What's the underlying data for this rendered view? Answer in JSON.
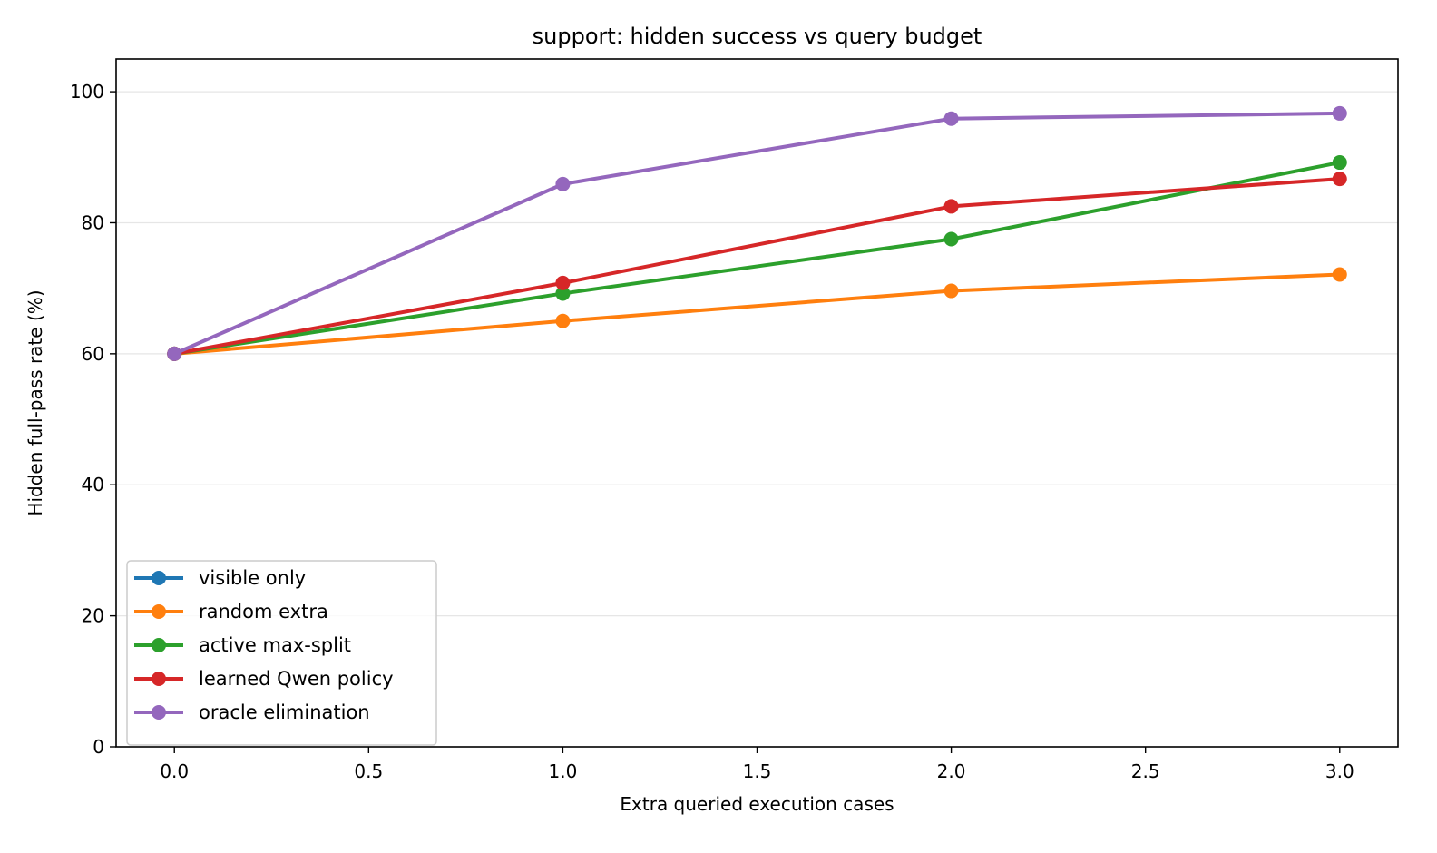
{
  "chart_data": {
    "type": "line",
    "title": "support: hidden success vs query budget",
    "xlabel": "Extra queried execution cases",
    "ylabel": "Hidden full-pass rate (%)",
    "xlim": [
      -0.15,
      3.15
    ],
    "ylim": [
      0,
      105
    ],
    "x_ticks": [
      0.0,
      0.5,
      1.0,
      1.5,
      2.0,
      2.5,
      3.0
    ],
    "x_tick_labels": [
      "0.0",
      "0.5",
      "1.0",
      "1.5",
      "2.0",
      "2.5",
      "3.0"
    ],
    "y_ticks": [
      0,
      20,
      40,
      60,
      80,
      100
    ],
    "y_tick_labels": [
      "0",
      "20",
      "40",
      "60",
      "80",
      "100"
    ],
    "grid": "horizontal",
    "legend_position": "lower-left",
    "x": [
      0,
      1,
      2,
      3
    ],
    "series": [
      {
        "name": "visible only",
        "color": "#1f77b4",
        "x": [
          0
        ],
        "values": [
          60.0
        ]
      },
      {
        "name": "random extra",
        "color": "#ff7f0e",
        "x": [
          0,
          1,
          2,
          3
        ],
        "values": [
          60.0,
          65.0,
          69.6,
          72.1
        ]
      },
      {
        "name": "active max-split",
        "color": "#2ca02c",
        "x": [
          0,
          1,
          2,
          3
        ],
        "values": [
          60.0,
          69.2,
          77.5,
          89.2
        ]
      },
      {
        "name": "learned Qwen policy",
        "color": "#d62728",
        "x": [
          0,
          1,
          2,
          3
        ],
        "values": [
          60.0,
          70.8,
          82.5,
          86.7
        ]
      },
      {
        "name": "oracle elimination",
        "color": "#9467bd",
        "x": [
          0,
          1,
          2,
          3
        ],
        "values": [
          60.0,
          85.9,
          95.9,
          96.7
        ]
      }
    ]
  }
}
